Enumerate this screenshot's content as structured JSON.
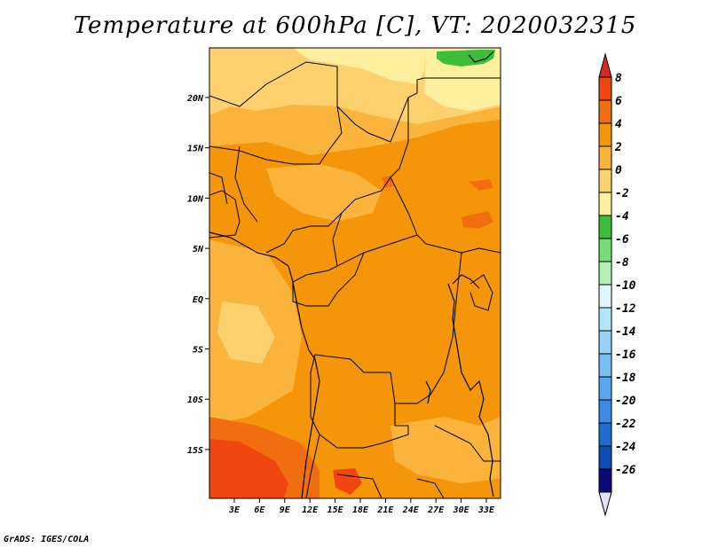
{
  "title": "Temperature at 600hPa [C], VT: 2020032315",
  "footer": "GrADS: IGES/COLA",
  "map": {
    "lat_labels": [
      "20N",
      "15N",
      "10N",
      "5N",
      "EQ",
      "5S",
      "10S",
      "15S"
    ],
    "lon_labels": [
      "3E",
      "6E",
      "9E",
      "12E",
      "15E",
      "18E",
      "21E",
      "24E",
      "27E",
      "30E",
      "33E"
    ]
  },
  "colorbar": {
    "labels": [
      "8",
      "6",
      "4",
      "2",
      "0",
      "-2",
      "-4",
      "-6",
      "-8",
      "-10",
      "-12",
      "-14",
      "-16",
      "-18",
      "-20",
      "-22",
      "-24",
      "-26"
    ],
    "top_color": "#d62a1e",
    "bottom_color": "#e1e1f5",
    "colors": [
      "#f0460f",
      "#f06e0f",
      "#f5960a",
      "#fab43c",
      "#fdd26e",
      "#fff0a0",
      "#3cbe3c",
      "#78dc78",
      "#b4f0b4",
      "#e1f5ff",
      "#b4e6fa",
      "#96d2fa",
      "#78bef5",
      "#5aa5f0",
      "#3c8ce6",
      "#1e6ed2",
      "#0f4bb4",
      "#0a0a78"
    ]
  },
  "field_colors": {
    "cold_light": "#fff0a0",
    "light": "#fdd26e",
    "medium": "#fab43c",
    "warm": "#f5960a",
    "hot": "#f06e0f",
    "hottest": "#f0460f",
    "green": "#3cbe3c"
  }
}
